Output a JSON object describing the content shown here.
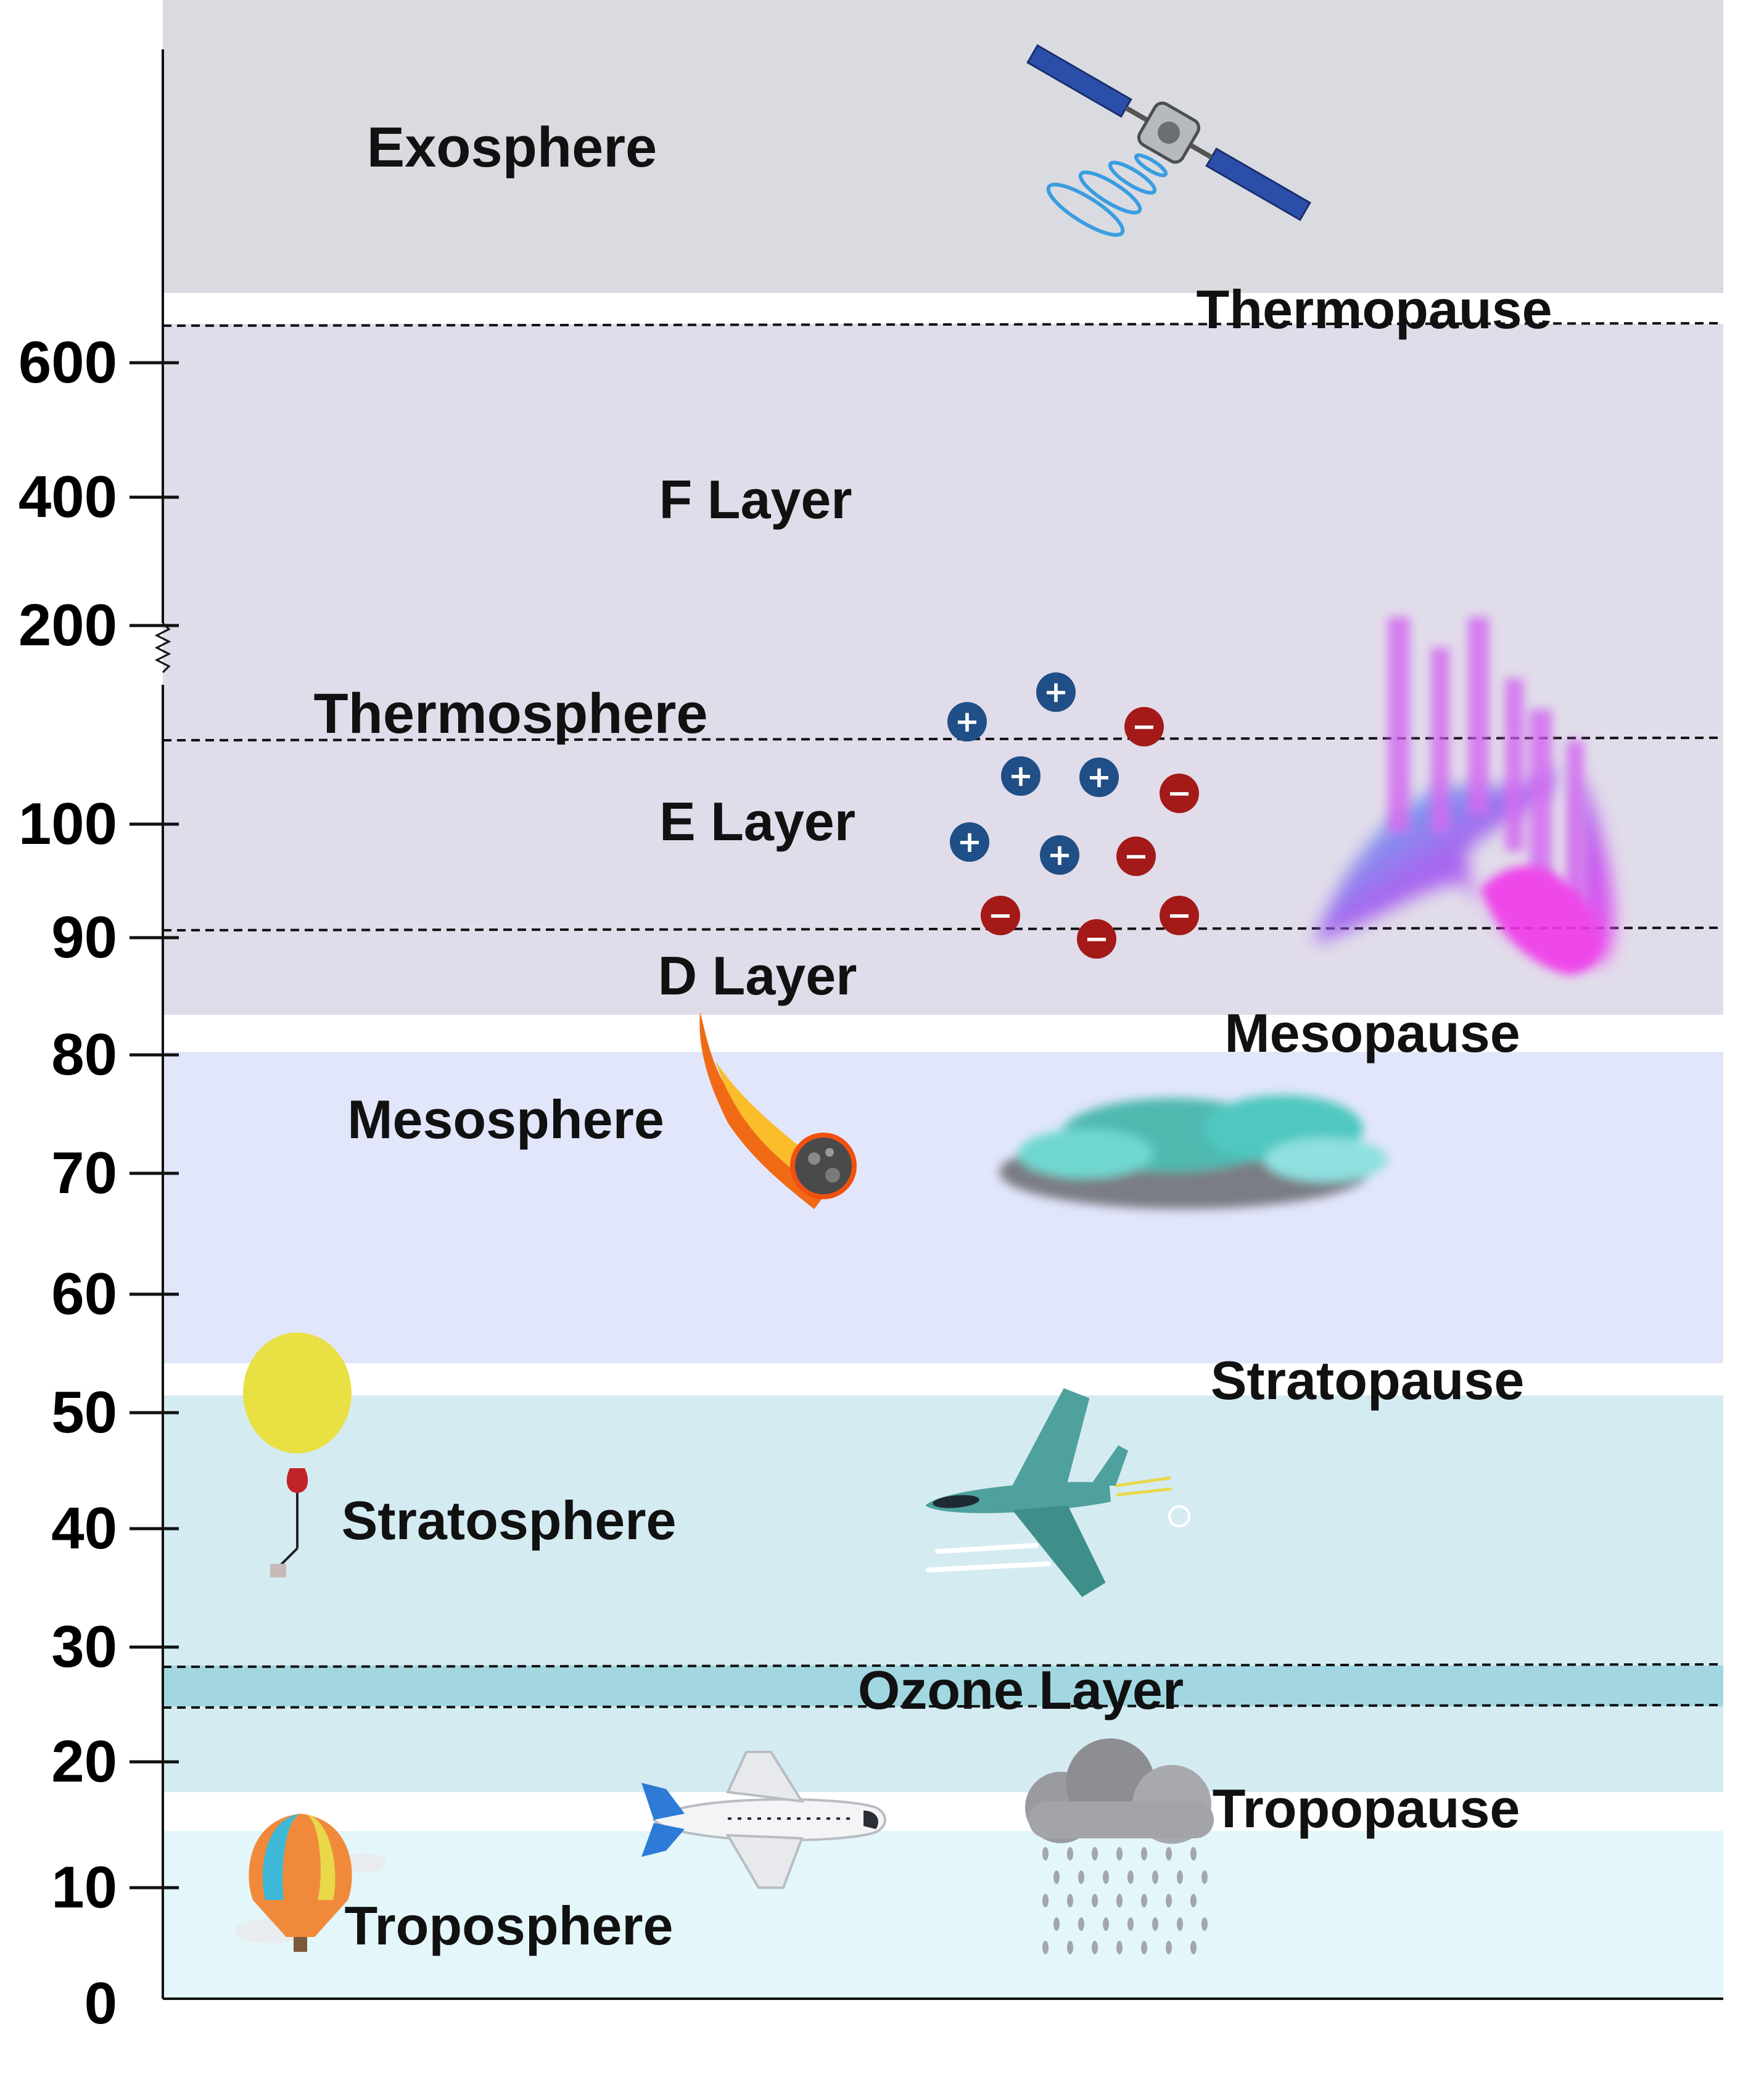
{
  "axis": {
    "ticks": [
      "600",
      "400",
      "200",
      "100",
      "90",
      "80",
      "70",
      "60",
      "50",
      "40",
      "30",
      "20",
      "10",
      "0"
    ]
  },
  "bands": {
    "exosphere": {
      "color": "#dadbe1"
    },
    "thermosphere": {
      "color": "#e1dcea"
    },
    "mesosphere": {
      "color": "#e2e6fb"
    },
    "stratosphere": {
      "color": "#d4ebf2"
    },
    "ozone": {
      "color": "#a2d7e1"
    },
    "troposphere": {
      "color": "#e3f7fb"
    }
  },
  "labels": {
    "exosphere": "Exosphere",
    "thermopause": "Thermopause",
    "f_layer": "F Layer",
    "thermosphere": "Thermosphere",
    "e_layer": "E Layer",
    "d_layer": "D Layer",
    "mesopause": "Mesopause",
    "mesosphere": "Mesosphere",
    "stratopause": "Stratopause",
    "stratosphere": "Stratosphere",
    "ozone_layer": "Ozone Layer",
    "tropopause": "Tropopause",
    "troposphere": "Troposphere"
  },
  "icons": {
    "satellite": "satellite-icon",
    "ions": "ions-icon",
    "aurora": "aurora-icon",
    "meteor": "meteor-icon",
    "noctilucent_cloud": "noctilucent-cloud-icon",
    "weather_balloon": "weather-balloon-icon",
    "jet": "fighter-jet-icon",
    "airplane": "airplane-icon",
    "rain_cloud": "rain-cloud-icon",
    "hot_air_balloon": "hot-air-balloon-icon"
  },
  "ions": {
    "positive_symbol": "+",
    "negative_symbol": "−"
  }
}
